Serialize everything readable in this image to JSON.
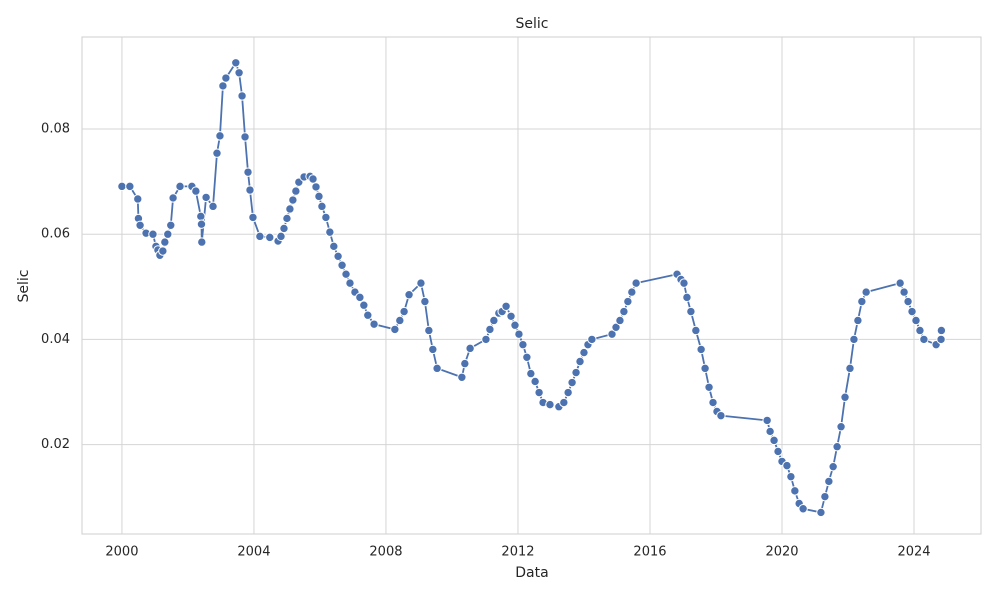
{
  "chart_data": {
    "type": "line",
    "title": "Selic",
    "x_label": "Data",
    "y_label": "Selic",
    "x": [
      2000.0,
      2000.24,
      2000.48,
      2000.5,
      2000.55,
      2000.73,
      2000.94,
      2001.03,
      2001.09,
      2001.15,
      2001.24,
      2001.3,
      2001.39,
      2001.48,
      2001.55,
      2001.76,
      2002.12,
      2002.24,
      2002.39,
      2002.41,
      2002.42,
      2002.55,
      2002.76,
      2002.88,
      2002.97,
      2003.06,
      2003.15,
      2003.45,
      2003.55,
      2003.64,
      2003.73,
      2003.82,
      2003.88,
      2003.97,
      2004.18,
      2004.48,
      2004.73,
      2004.82,
      2004.91,
      2005.0,
      2005.09,
      2005.18,
      2005.27,
      2005.36,
      2005.52,
      2005.7,
      2005.79,
      2005.88,
      2005.97,
      2006.06,
      2006.18,
      2006.3,
      2006.42,
      2006.55,
      2006.67,
      2006.79,
      2006.91,
      2007.06,
      2007.21,
      2007.33,
      2007.45,
      2007.64,
      2008.27,
      2008.42,
      2008.55,
      2008.7,
      2009.06,
      2009.18,
      2009.3,
      2009.42,
      2009.55,
      2010.3,
      2010.39,
      2010.55,
      2011.03,
      2011.15,
      2011.27,
      2011.42,
      2011.52,
      2011.64,
      2011.79,
      2011.91,
      2012.03,
      2012.15,
      2012.27,
      2012.39,
      2012.52,
      2012.64,
      2012.76,
      2012.97,
      2013.24,
      2013.39,
      2013.52,
      2013.64,
      2013.76,
      2013.88,
      2014.0,
      2014.12,
      2014.24,
      2014.85,
      2014.97,
      2015.09,
      2015.21,
      2015.33,
      2015.45,
      2015.58,
      2016.82,
      2016.94,
      2017.03,
      2017.12,
      2017.24,
      2017.39,
      2017.55,
      2017.67,
      2017.79,
      2017.91,
      2018.03,
      2018.15,
      2019.55,
      2019.64,
      2019.76,
      2019.88,
      2020.0,
      2020.15,
      2020.27,
      2020.39,
      2020.52,
      2020.64,
      2021.18,
      2021.3,
      2021.42,
      2021.55,
      2021.67,
      2021.79,
      2021.91,
      2022.06,
      2022.18,
      2022.3,
      2022.42,
      2022.55,
      2023.58,
      2023.7,
      2023.82,
      2023.94,
      2024.06,
      2024.18,
      2024.3,
      2024.67,
      2024.82,
      2024.83
    ],
    "values": [
      0.0691,
      0.0691,
      0.0667,
      0.063,
      0.0617,
      0.0602,
      0.06,
      0.0577,
      0.057,
      0.056,
      0.0568,
      0.0585,
      0.06,
      0.0617,
      0.0669,
      0.0691,
      0.0691,
      0.0682,
      0.0634,
      0.0619,
      0.0585,
      0.067,
      0.0653,
      0.0754,
      0.0787,
      0.0882,
      0.0897,
      0.0926,
      0.0907,
      0.0863,
      0.0785,
      0.0718,
      0.0684,
      0.0632,
      0.0596,
      0.0594,
      0.0587,
      0.0596,
      0.0611,
      0.063,
      0.0648,
      0.0665,
      0.0682,
      0.0699,
      0.0709,
      0.071,
      0.0705,
      0.069,
      0.0672,
      0.0653,
      0.0632,
      0.0604,
      0.0577,
      0.0558,
      0.0541,
      0.0524,
      0.0507,
      0.049,
      0.048,
      0.0465,
      0.0446,
      0.0429,
      0.0419,
      0.0436,
      0.0453,
      0.0485,
      0.0507,
      0.0472,
      0.0417,
      0.0381,
      0.0345,
      0.0328,
      0.0354,
      0.0383,
      0.04,
      0.0419,
      0.0436,
      0.045,
      0.0453,
      0.0463,
      0.0444,
      0.0427,
      0.041,
      0.039,
      0.0366,
      0.0335,
      0.032,
      0.0299,
      0.028,
      0.0276,
      0.0272,
      0.028,
      0.0299,
      0.0318,
      0.0337,
      0.0358,
      0.0375,
      0.039,
      0.04,
      0.041,
      0.0423,
      0.0436,
      0.0453,
      0.0472,
      0.049,
      0.0507,
      0.0524,
      0.0514,
      0.0507,
      0.048,
      0.0453,
      0.0417,
      0.0381,
      0.0345,
      0.0309,
      0.028,
      0.0263,
      0.0255,
      0.0246,
      0.0225,
      0.0208,
      0.0187,
      0.0168,
      0.016,
      0.0139,
      0.0112,
      0.0088,
      0.0078,
      0.0071,
      0.0101,
      0.013,
      0.0158,
      0.0196,
      0.0234,
      0.029,
      0.0345,
      0.04,
      0.0436,
      0.0472,
      0.049,
      0.0507,
      0.049,
      0.0472,
      0.0453,
      0.0436,
      0.0417,
      0.04,
      0.039,
      0.04,
      0.0417
    ],
    "color": "#4c72b0",
    "markers": true,
    "grid": true,
    "xlim": [
      1998.79,
      2026.03
    ],
    "xticks": [
      2000,
      2004,
      2008,
      2012,
      2016,
      2020,
      2024
    ],
    "ylim": [
      0.003,
      0.0975
    ],
    "yticks": [
      0.02,
      0.04,
      0.06,
      0.08
    ]
  }
}
